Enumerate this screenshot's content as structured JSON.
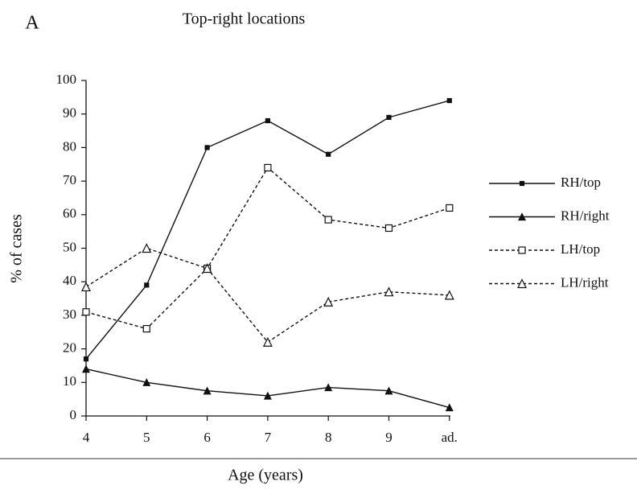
{
  "chart_data": {
    "type": "line",
    "panel": "A",
    "title": "Top-right locations",
    "xlabel": "Age (years)",
    "ylabel": "% of cases",
    "categories": [
      "4",
      "5",
      "6",
      "7",
      "8",
      "9",
      "ad."
    ],
    "ylim": [
      0,
      100
    ],
    "yticks": [
      0,
      10,
      20,
      30,
      40,
      50,
      60,
      70,
      80,
      90,
      100
    ],
    "legend": "right",
    "series": [
      {
        "name": "RH/top",
        "color": "#111111",
        "line_style": "solid",
        "marker": "square-filled",
        "values": [
          17,
          39,
          80,
          88,
          78,
          89,
          94
        ]
      },
      {
        "name": "RH/right",
        "color": "#111111",
        "line_style": "solid",
        "marker": "triangle-filled",
        "values": [
          14,
          10,
          7.5,
          6,
          8.5,
          7.5,
          2.5
        ]
      },
      {
        "name": "LH/top",
        "color": "#111111",
        "line_style": "dashed",
        "marker": "square-open",
        "values": [
          31,
          26,
          44,
          74,
          58.5,
          56,
          62
        ]
      },
      {
        "name": "LH/right",
        "color": "#111111",
        "line_style": "dashed",
        "marker": "triangle-open",
        "values": [
          38.5,
          50,
          44,
          22,
          34,
          37,
          36
        ]
      }
    ]
  }
}
